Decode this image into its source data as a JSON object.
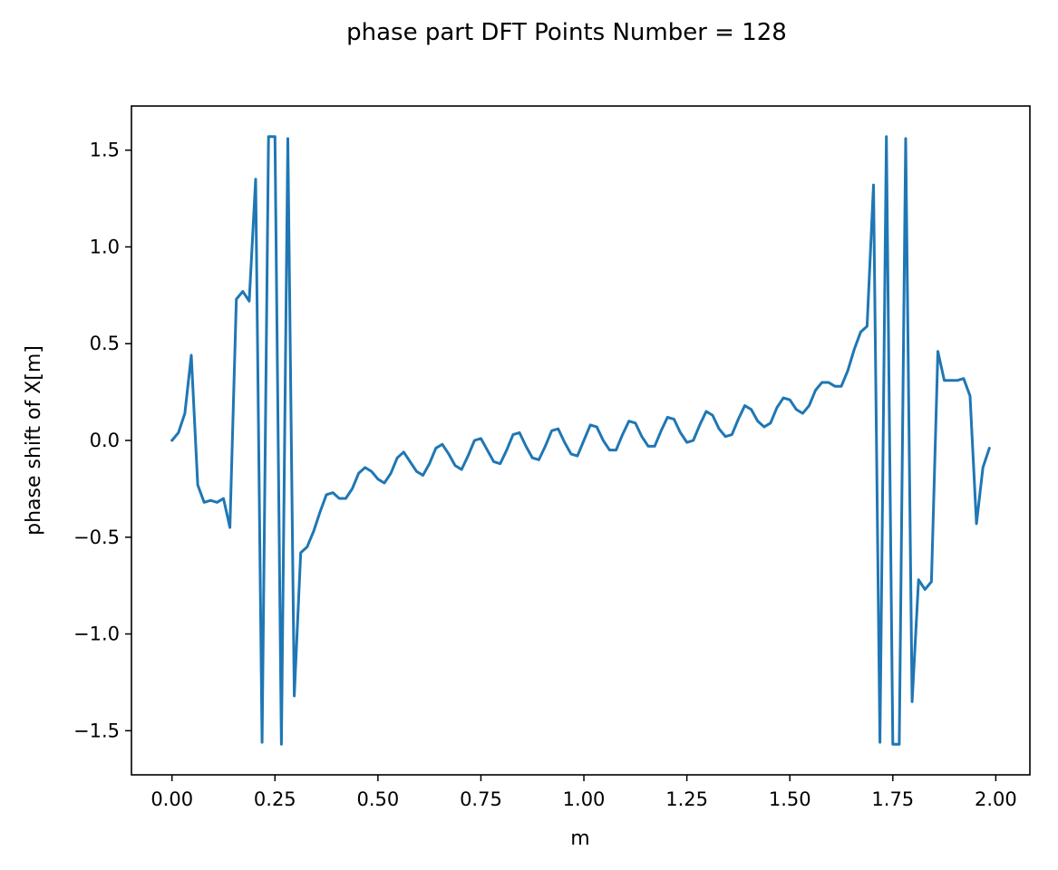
{
  "chart_data": {
    "type": "line",
    "title": "phase part DFT Points Number = 128",
    "xlabel": "m",
    "ylabel": "phase shift of X[m]",
    "xlim": [
      -0.0984,
      2.0828
    ],
    "ylim": [
      -1.728,
      1.728
    ],
    "xticks": [
      0.0,
      0.25,
      0.5,
      0.75,
      1.0,
      1.25,
      1.5,
      1.75,
      2.0
    ],
    "xtick_labels": [
      "0.00",
      "0.25",
      "0.50",
      "0.75",
      "1.00",
      "1.25",
      "1.50",
      "1.75",
      "2.00"
    ],
    "yticks": [
      -1.5,
      -1.0,
      -0.5,
      0.0,
      0.5,
      1.0,
      1.5
    ],
    "ytick_labels": [
      "−1.5",
      "−1.0",
      "−0.5",
      "0.0",
      "0.5",
      "1.0",
      "1.5"
    ],
    "grid": false,
    "series": [
      {
        "color": "#1f77b4",
        "x": [
          0.0,
          0.015625,
          0.03125,
          0.046875,
          0.0625,
          0.078125,
          0.09375,
          0.109375,
          0.125,
          0.140625,
          0.15625,
          0.171875,
          0.1875,
          0.203125,
          0.21875,
          0.234375,
          0.25,
          0.265625,
          0.28125,
          0.296875,
          0.3125,
          0.328125,
          0.34375,
          0.359375,
          0.375,
          0.390625,
          0.40625,
          0.421875,
          0.4375,
          0.453125,
          0.46875,
          0.484375,
          0.5,
          0.515625,
          0.53125,
          0.546875,
          0.5625,
          0.578125,
          0.59375,
          0.609375,
          0.625,
          0.640625,
          0.65625,
          0.671875,
          0.6875,
          0.703125,
          0.71875,
          0.734375,
          0.75,
          0.765625,
          0.78125,
          0.796875,
          0.8125,
          0.828125,
          0.84375,
          0.859375,
          0.875,
          0.890625,
          0.90625,
          0.921875,
          0.9375,
          0.953125,
          0.96875,
          0.984375,
          1.0,
          1.015625,
          1.03125,
          1.046875,
          1.0625,
          1.078125,
          1.09375,
          1.109375,
          1.125,
          1.140625,
          1.15625,
          1.171875,
          1.1875,
          1.203125,
          1.21875,
          1.234375,
          1.25,
          1.265625,
          1.28125,
          1.296875,
          1.3125,
          1.328125,
          1.34375,
          1.359375,
          1.375,
          1.390625,
          1.40625,
          1.421875,
          1.4375,
          1.453125,
          1.46875,
          1.484375,
          1.5,
          1.515625,
          1.53125,
          1.546875,
          1.5625,
          1.578125,
          1.59375,
          1.609375,
          1.625,
          1.640625,
          1.65625,
          1.671875,
          1.6875,
          1.703125,
          1.71875,
          1.734375,
          1.75,
          1.765625,
          1.78125,
          1.796875,
          1.8125,
          1.828125,
          1.84375,
          1.859375,
          1.875,
          1.890625,
          1.90625,
          1.921875,
          1.9375,
          1.953125,
          1.96875,
          1.984375
        ],
        "y": [
          0.0,
          0.04,
          0.14,
          0.44,
          -0.23,
          -0.32,
          -0.31,
          -0.32,
          -0.3,
          -0.45,
          0.73,
          0.77,
          0.72,
          1.35,
          -1.56,
          1.57,
          1.57,
          -1.57,
          1.56,
          -1.32,
          -0.58,
          -0.55,
          -0.47,
          -0.37,
          -0.28,
          -0.27,
          -0.3,
          -0.3,
          -0.25,
          -0.17,
          -0.14,
          -0.16,
          -0.2,
          -0.22,
          -0.17,
          -0.09,
          -0.06,
          -0.11,
          -0.16,
          -0.18,
          -0.12,
          -0.04,
          -0.02,
          -0.07,
          -0.13,
          -0.15,
          -0.08,
          0.0,
          0.01,
          -0.05,
          -0.11,
          -0.12,
          -0.05,
          0.03,
          0.04,
          -0.03,
          -0.09,
          -0.1,
          -0.03,
          0.05,
          0.06,
          -0.01,
          -0.07,
          -0.08,
          0.0,
          0.08,
          0.07,
          0.0,
          -0.05,
          -0.05,
          0.03,
          0.1,
          0.09,
          0.02,
          -0.03,
          -0.03,
          0.05,
          0.12,
          0.11,
          0.04,
          -0.01,
          0.0,
          0.08,
          0.15,
          0.13,
          0.06,
          0.02,
          0.03,
          0.11,
          0.18,
          0.16,
          0.1,
          0.07,
          0.09,
          0.17,
          0.22,
          0.21,
          0.16,
          0.14,
          0.18,
          0.26,
          0.3,
          0.3,
          0.28,
          0.28,
          0.36,
          0.47,
          0.56,
          0.59,
          1.32,
          -1.56,
          1.57,
          -1.57,
          -1.57,
          1.56,
          -1.35,
          -0.72,
          -0.77,
          -0.73,
          0.46,
          0.31,
          0.31,
          0.31,
          0.32,
          0.23,
          -0.43,
          -0.14,
          -0.04
        ]
      }
    ]
  }
}
